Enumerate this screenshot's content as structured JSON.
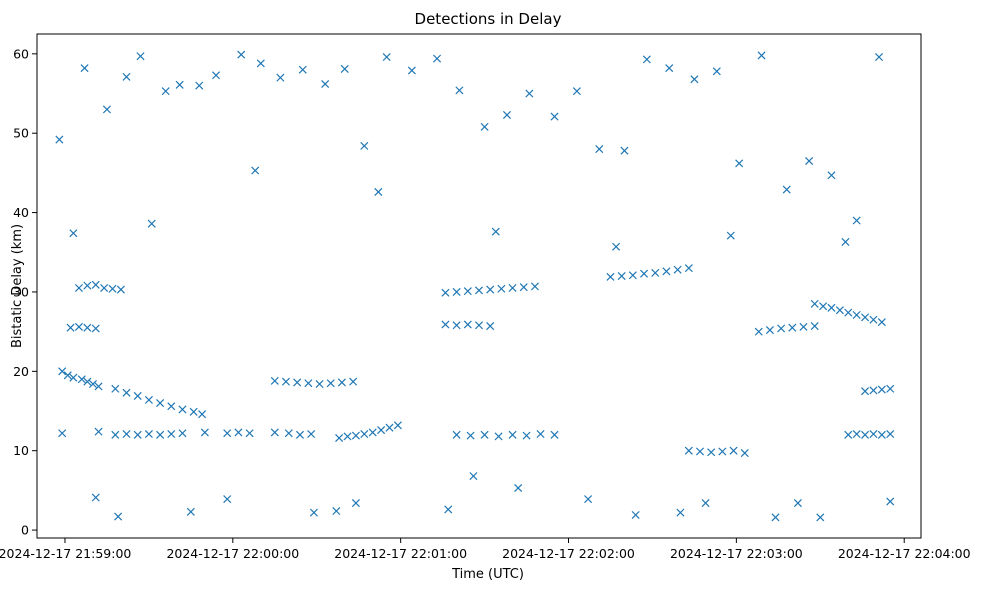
{
  "chart_data": {
    "type": "scatter",
    "title": "Detections in Delay",
    "xlabel": "Time (UTC)",
    "ylabel": "Bistatic Delay (km)",
    "marker": "x",
    "color": "#1f77b4",
    "grid": false,
    "x_unit": "UTC time",
    "xlim": [
      "2024-12-17 21:58:50",
      "2024-12-17 22:04:06"
    ],
    "ylim": [
      -1,
      62.5
    ],
    "x_ticks": [
      "2024-12-17 21:59:00",
      "2024-12-17 22:00:00",
      "2024-12-17 22:01:00",
      "2024-12-17 22:02:00",
      "2024-12-17 22:03:00",
      "2024-12-17 22:04:00"
    ],
    "x_tick_labels": [
      "2024-12-17 21:59:00",
      "2024-12-17 22:00:00",
      "2024-12-17 22:01:00",
      "2024-12-17 22:02:00",
      "2024-12-17 22:03:00",
      "2024-12-17 22:04:00"
    ],
    "y_ticks": [
      0,
      10,
      20,
      30,
      40,
      50,
      60
    ],
    "y_tick_labels": [
      "0",
      "10",
      "20",
      "30",
      "40",
      "50",
      "60"
    ],
    "tracks": [
      {
        "x": [
          "2024-12-17 21:58:59",
          "2024-12-17 21:59:01",
          "2024-12-17 21:59:03",
          "2024-12-17 21:59:06",
          "2024-12-17 21:59:08",
          "2024-12-17 21:59:10",
          "2024-12-17 21:59:12"
        ],
        "y": [
          20.0,
          19.5,
          19.2,
          19.0,
          18.7,
          18.4,
          18.1
        ]
      },
      {
        "x": [
          "2024-12-17 21:59:18",
          "2024-12-17 21:59:22",
          "2024-12-17 21:59:26",
          "2024-12-17 21:59:30",
          "2024-12-17 21:59:34",
          "2024-12-17 21:59:38",
          "2024-12-17 21:59:42",
          "2024-12-17 21:59:46",
          "2024-12-17 21:59:49"
        ],
        "y": [
          17.8,
          17.3,
          16.9,
          16.4,
          16.0,
          15.6,
          15.2,
          14.9,
          14.6
        ]
      },
      {
        "x": [
          "2024-12-17 21:58:59",
          "2024-12-17 21:59:12",
          "2024-12-17 21:59:18",
          "2024-12-17 21:59:22",
          "2024-12-17 21:59:26",
          "2024-12-17 21:59:30",
          "2024-12-17 21:59:34",
          "2024-12-17 21:59:38",
          "2024-12-17 21:59:42",
          "2024-12-17 21:59:50",
          "2024-12-17 21:59:58",
          "2024-12-17 22:00:02",
          "2024-12-17 22:00:06",
          "2024-12-17 22:00:15",
          "2024-12-17 22:00:20",
          "2024-12-17 22:00:24",
          "2024-12-17 22:00:28"
        ],
        "y": [
          12.2,
          12.4,
          12.0,
          12.1,
          12.0,
          12.1,
          12.0,
          12.1,
          12.2,
          12.3,
          12.2,
          12.3,
          12.2,
          12.3,
          12.2,
          12.0,
          12.1
        ]
      },
      {
        "x": [
          "2024-12-17 21:59:05",
          "2024-12-17 21:59:08",
          "2024-12-17 21:59:11",
          "2024-12-17 21:59:14",
          "2024-12-17 21:59:17",
          "2024-12-17 21:59:20"
        ],
        "y": [
          30.5,
          30.8,
          30.9,
          30.5,
          30.4,
          30.3
        ]
      },
      {
        "x": [
          "2024-12-17 21:59:02",
          "2024-12-17 21:59:05",
          "2024-12-17 21:59:08",
          "2024-12-17 21:59:11"
        ],
        "y": [
          25.5,
          25.6,
          25.5,
          25.4
        ]
      },
      {
        "x": [
          "2024-12-17 22:00:15",
          "2024-12-17 22:00:19",
          "2024-12-17 22:00:23",
          "2024-12-17 22:00:27",
          "2024-12-17 22:00:31",
          "2024-12-17 22:00:35",
          "2024-12-17 22:00:39",
          "2024-12-17 22:00:43"
        ],
        "y": [
          18.8,
          18.7,
          18.6,
          18.5,
          18.4,
          18.5,
          18.6,
          18.7
        ]
      },
      {
        "x": [
          "2024-12-17 22:00:38",
          "2024-12-17 22:00:41",
          "2024-12-17 22:00:44",
          "2024-12-17 22:00:47",
          "2024-12-17 22:00:50",
          "2024-12-17 22:00:53",
          "2024-12-17 22:00:56",
          "2024-12-17 22:00:59"
        ],
        "y": [
          11.6,
          11.8,
          11.9,
          12.1,
          12.3,
          12.6,
          12.9,
          13.2
        ]
      },
      {
        "x": [
          "2024-12-17 22:01:16",
          "2024-12-17 22:01:20",
          "2024-12-17 22:01:24",
          "2024-12-17 22:01:28",
          "2024-12-17 22:01:32",
          "2024-12-17 22:01:36",
          "2024-12-17 22:01:40",
          "2024-12-17 22:01:44",
          "2024-12-17 22:01:48"
        ],
        "y": [
          29.9,
          30.0,
          30.1,
          30.2,
          30.3,
          30.4,
          30.5,
          30.6,
          30.7
        ]
      },
      {
        "x": [
          "2024-12-17 22:01:16",
          "2024-12-17 22:01:20",
          "2024-12-17 22:01:24",
          "2024-12-17 22:01:28",
          "2024-12-17 22:01:32"
        ],
        "y": [
          25.9,
          25.8,
          25.9,
          25.8,
          25.7
        ]
      },
      {
        "x": [
          "2024-12-17 22:01:20",
          "2024-12-17 22:01:25",
          "2024-12-17 22:01:30",
          "2024-12-17 22:01:35",
          "2024-12-17 22:01:40",
          "2024-12-17 22:01:45",
          "2024-12-17 22:01:50",
          "2024-12-17 22:01:55"
        ],
        "y": [
          12.0,
          11.9,
          12.0,
          11.8,
          12.0,
          11.9,
          12.1,
          12.0
        ]
      },
      {
        "x": [
          "2024-12-17 22:02:15",
          "2024-12-17 22:02:19",
          "2024-12-17 22:02:23",
          "2024-12-17 22:02:27",
          "2024-12-17 22:02:31",
          "2024-12-17 22:02:35",
          "2024-12-17 22:02:39",
          "2024-12-17 22:02:43"
        ],
        "y": [
          31.9,
          32.0,
          32.1,
          32.3,
          32.4,
          32.6,
          32.8,
          33.0
        ]
      },
      {
        "x": [
          "2024-12-17 22:02:43",
          "2024-12-17 22:02:47",
          "2024-12-17 22:02:51",
          "2024-12-17 22:02:55",
          "2024-12-17 22:02:59",
          "2024-12-17 22:03:03"
        ],
        "y": [
          10.0,
          9.9,
          9.8,
          9.9,
          10.0,
          9.7
        ]
      },
      {
        "x": [
          "2024-12-17 22:03:08",
          "2024-12-17 22:03:12",
          "2024-12-17 22:03:16",
          "2024-12-17 22:03:20",
          "2024-12-17 22:03:24",
          "2024-12-17 22:03:28"
        ],
        "y": [
          25.0,
          25.2,
          25.4,
          25.5,
          25.6,
          25.7
        ]
      },
      {
        "x": [
          "2024-12-17 22:03:28",
          "2024-12-17 22:03:31",
          "2024-12-17 22:03:34",
          "2024-12-17 22:03:37",
          "2024-12-17 22:03:40",
          "2024-12-17 22:03:43",
          "2024-12-17 22:03:46",
          "2024-12-17 22:03:49",
          "2024-12-17 22:03:52"
        ],
        "y": [
          28.5,
          28.2,
          28.0,
          27.7,
          27.4,
          27.1,
          26.8,
          26.5,
          26.2
        ]
      },
      {
        "x": [
          "2024-12-17 22:03:40",
          "2024-12-17 22:03:43",
          "2024-12-17 22:03:46",
          "2024-12-17 22:03:49",
          "2024-12-17 22:03:52",
          "2024-12-17 22:03:55"
        ],
        "y": [
          12.0,
          12.1,
          12.0,
          12.1,
          12.0,
          12.1
        ]
      },
      {
        "x": [
          "2024-12-17 22:03:46",
          "2024-12-17 22:03:49",
          "2024-12-17 22:03:52",
          "2024-12-17 22:03:55"
        ],
        "y": [
          17.5,
          17.6,
          17.7,
          17.8
        ]
      }
    ],
    "scattered": {
      "x": [
        "2024-12-17 21:58:58",
        "2024-12-17 21:59:07",
        "2024-12-17 21:59:15",
        "2024-12-17 21:59:22",
        "2024-12-17 21:59:27",
        "2024-12-17 21:59:36",
        "2024-12-17 21:59:41",
        "2024-12-17 21:59:48",
        "2024-12-17 21:59:54",
        "2024-12-17 22:00:03",
        "2024-12-17 22:00:10",
        "2024-12-17 22:00:17",
        "2024-12-17 22:00:25",
        "2024-12-17 22:00:33",
        "2024-12-17 22:00:40",
        "2024-12-17 22:00:47",
        "2024-12-17 22:00:55",
        "2024-12-17 22:01:04",
        "2024-12-17 22:01:13",
        "2024-12-17 22:01:21",
        "2024-12-17 22:01:30",
        "2024-12-17 22:01:38",
        "2024-12-17 22:01:46",
        "2024-12-17 22:01:55",
        "2024-12-17 22:02:03",
        "2024-12-17 22:02:11",
        "2024-12-17 22:02:20",
        "2024-12-17 22:02:28",
        "2024-12-17 22:02:36",
        "2024-12-17 22:02:45",
        "2024-12-17 22:02:53",
        "2024-12-17 22:03:01",
        "2024-12-17 22:03:09",
        "2024-12-17 22:03:18",
        "2024-12-17 22:03:26",
        "2024-12-17 22:03:34",
        "2024-12-17 22:03:43",
        "2024-12-17 22:03:51",
        "2024-12-17 21:59:03",
        "2024-12-17 21:59:31",
        "2024-12-17 22:00:08",
        "2024-12-17 22:00:52",
        "2024-12-17 22:01:34",
        "2024-12-17 22:02:17",
        "2024-12-17 22:02:58",
        "2024-12-17 22:03:39",
        "2024-12-17 21:59:11",
        "2024-12-17 21:59:58",
        "2024-12-17 22:00:44",
        "2024-12-17 22:01:26",
        "2024-12-17 22:02:07",
        "2024-12-17 22:02:49",
        "2024-12-17 22:03:30",
        "2024-12-17 21:59:19",
        "2024-12-17 22:00:29",
        "2024-12-17 22:01:42",
        "2024-12-17 22:02:40",
        "2024-12-17 22:03:22",
        "2024-12-17 21:59:45",
        "2024-12-17 22:00:37",
        "2024-12-17 22:01:17",
        "2024-12-17 22:02:24",
        "2024-12-17 22:03:14",
        "2024-12-17 22:03:55"
      ],
      "y": [
        49.2,
        58.2,
        53.0,
        57.1,
        59.7,
        55.3,
        56.1,
        56.0,
        57.3,
        59.9,
        58.8,
        57.0,
        58.0,
        56.2,
        58.1,
        48.4,
        59.6,
        57.9,
        59.4,
        55.4,
        50.8,
        52.3,
        55.0,
        52.1,
        55.3,
        48.0,
        47.8,
        59.3,
        58.2,
        56.8,
        57.8,
        46.2,
        59.8,
        42.9,
        46.5,
        44.7,
        39.0,
        59.6,
        37.4,
        38.6,
        45.3,
        42.6,
        37.6,
        35.7,
        37.1,
        36.3,
        4.1,
        3.9,
        3.4,
        6.8,
        3.9,
        3.4,
        1.6,
        1.7,
        2.2,
        5.3,
        2.2,
        3.4,
        2.3,
        2.4,
        2.6,
        1.9,
        1.6,
        3.6
      ]
    }
  }
}
